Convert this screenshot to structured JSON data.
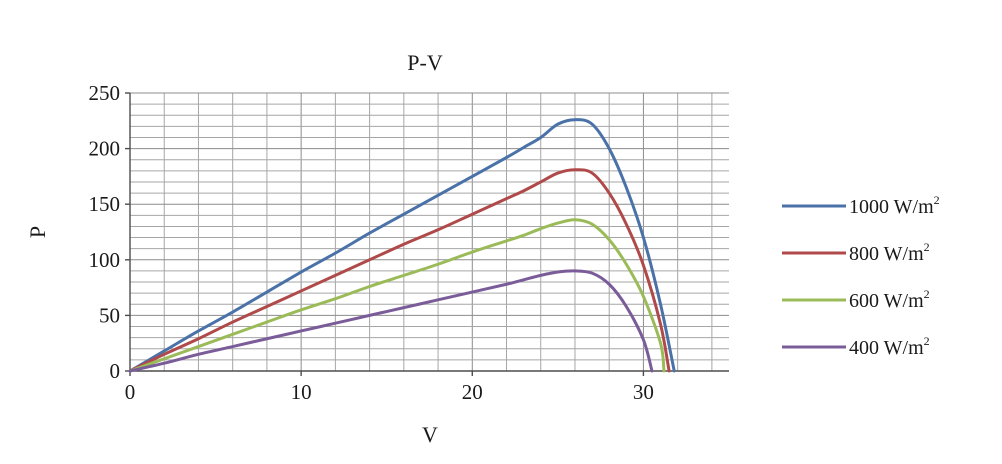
{
  "chart_data": {
    "type": "line",
    "title": "P-V",
    "xlabel": "V",
    "ylabel": "P",
    "xlim": [
      0,
      35
    ],
    "ylim": [
      0,
      250
    ],
    "x_ticks": [
      0,
      10,
      20,
      30
    ],
    "y_ticks": [
      0,
      50,
      100,
      150,
      200,
      250
    ],
    "grid": true,
    "legend_position": "right",
    "series": [
      {
        "name": "1000 W/m",
        "superscript": "2",
        "color": "#4a72a8",
        "x": [
          0,
          2,
          4,
          6,
          8,
          10,
          12,
          14,
          16,
          18,
          20,
          22,
          23,
          24,
          25,
          26,
          27,
          28,
          29,
          30,
          31,
          31.8
        ],
        "y": [
          0,
          18,
          36,
          53,
          71,
          89,
          106,
          124,
          141,
          158,
          175,
          192,
          201,
          210,
          222,
          226,
          222,
          200,
          165,
          120,
          60,
          0
        ]
      },
      {
        "name": "800 W/m",
        "superscript": "2",
        "color": "#b04a4a",
        "x": [
          0,
          2,
          4,
          6,
          8,
          10,
          12,
          14,
          16,
          18,
          20,
          22,
          23,
          24,
          25,
          26,
          27,
          28,
          29,
          30,
          31,
          31.5
        ],
        "y": [
          0,
          15,
          29,
          44,
          58,
          72,
          86,
          100,
          114,
          127,
          141,
          155,
          162,
          170,
          178,
          181,
          178,
          160,
          132,
          95,
          42,
          0
        ]
      },
      {
        "name": "600 W/m",
        "superscript": "2",
        "color": "#9bbb59",
        "x": [
          0,
          2,
          4,
          6,
          8,
          10,
          12,
          14,
          16,
          18,
          20,
          22,
          23,
          24,
          25,
          26,
          27,
          28,
          29,
          30,
          31,
          31.2
        ],
        "y": [
          0,
          11,
          22,
          33,
          44,
          55,
          65,
          76,
          86,
          96,
          107,
          117,
          122,
          128,
          133,
          136,
          132,
          118,
          96,
          67,
          25,
          0
        ]
      },
      {
        "name": "400 W/m",
        "superscript": "2",
        "color": "#7a5c99",
        "x": [
          0,
          2,
          4,
          6,
          8,
          10,
          12,
          14,
          16,
          18,
          20,
          22,
          23,
          24,
          25,
          26,
          27,
          28,
          29,
          30,
          30.5
        ],
        "y": [
          0,
          7,
          15,
          22,
          29,
          36,
          43,
          50,
          57,
          64,
          71,
          78,
          82,
          86,
          89,
          90,
          88,
          78,
          58,
          28,
          0
        ]
      }
    ]
  }
}
